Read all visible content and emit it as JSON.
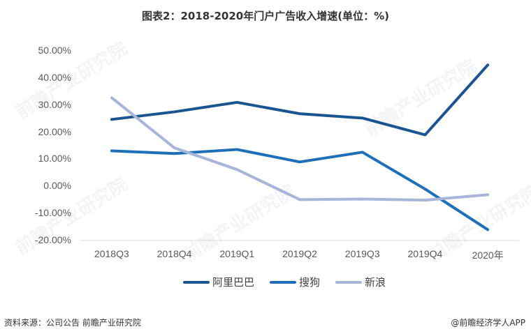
{
  "title": "图表2：2018-2020年门户广告收入增速(单位：%)",
  "chart_data": {
    "type": "line",
    "title": "图表2：2018-2020年门户广告收入增速(单位：%)",
    "xlabel": "",
    "ylabel": "",
    "categories": [
      "2018Q3",
      "2018Q4",
      "2019Q1",
      "2019Q2",
      "2019Q3",
      "2019Q4",
      "2020年"
    ],
    "series": [
      {
        "name": "阿里巴巴",
        "color": "#1a5592",
        "values": [
          24.7,
          27.5,
          31.0,
          26.8,
          25.2,
          19.0,
          44.8
        ]
      },
      {
        "name": "搜狗",
        "color": "#1f6fb8",
        "values": [
          13.1,
          12.1,
          13.6,
          9.0,
          12.6,
          -1.0,
          -16.0
        ]
      },
      {
        "name": "新浪",
        "color": "#a7b5d9",
        "values": [
          32.7,
          14.2,
          6.2,
          -4.9,
          -4.7,
          -5.1,
          -3.1
        ]
      }
    ],
    "ylim": [
      -20,
      50
    ],
    "yticks": [
      "50.00%",
      "40.00%",
      "30.00%",
      "20.00%",
      "10.00%",
      "0.00%",
      "-10.00%",
      "-20.00%"
    ],
    "grid": false,
    "legend_position": "bottom"
  },
  "footer": {
    "source": "资料来源：公司公告 前瞻产业研究院",
    "credit": "@前瞻经济学人APP"
  },
  "watermark": "前瞻产业研究院"
}
